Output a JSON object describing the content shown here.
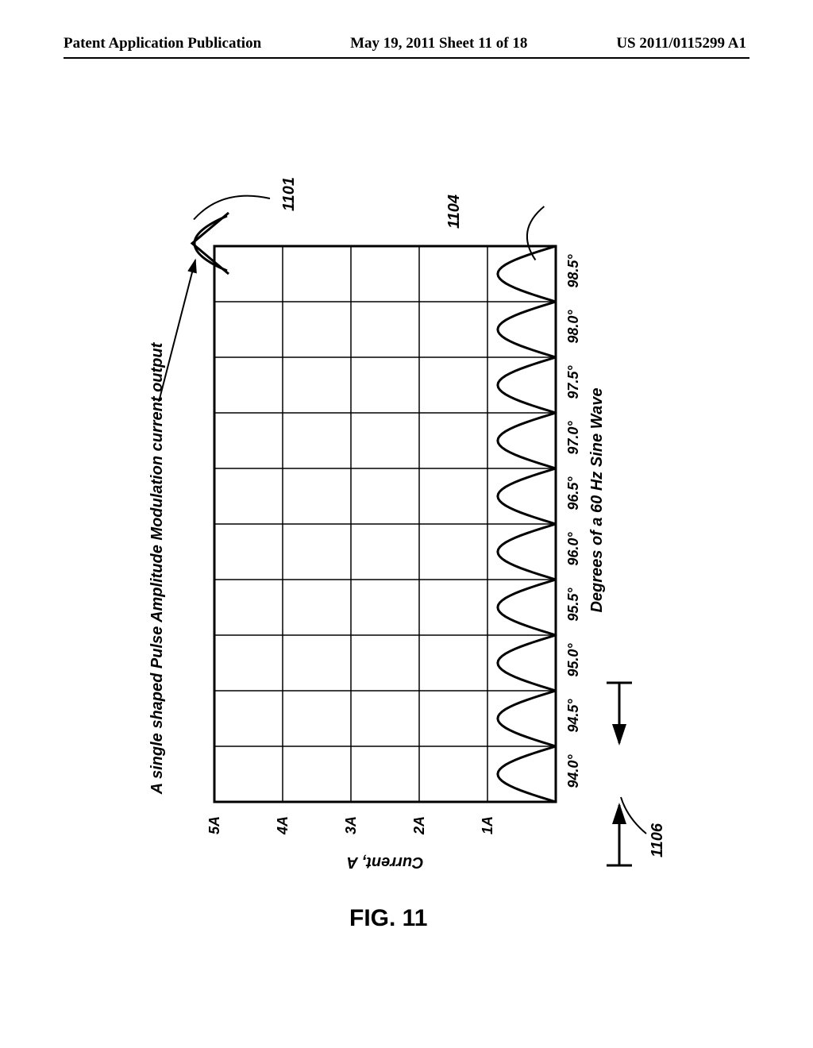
{
  "header": {
    "left": "Patent Application Publication",
    "center": "May 19, 2011  Sheet 11 of 18",
    "right": "US 2011/0115299 A1"
  },
  "figure": {
    "caption": "FIG. 11",
    "title": "A single shaped Pulse Amplitude Modulation current output",
    "y_axis_label": "Current, A",
    "x_axis_label": "Degrees of a 60 Hz  Sine Wave",
    "y_ticks": [
      "1A",
      "2A",
      "3A",
      "4A",
      "5A"
    ],
    "x_ticks": [
      "94.0°",
      "94.5°",
      "95.0°",
      "95.5°",
      "96.0°",
      "96.5°",
      "97.0°",
      "97.5°",
      "98.0°",
      "98.5°"
    ],
    "refs": {
      "curve": "1101",
      "rightmost_hump": "1104",
      "interval_marker": "1106"
    },
    "style": {
      "axis_stroke": "#000000",
      "axis_stroke_width": 3,
      "grid_stroke": "#000000",
      "grid_stroke_width": 1.5,
      "background": "#ffffff",
      "font_family_labels": "Arial, Helvetica, sans-serif",
      "tick_fontsize": 18,
      "axis_label_fontsize": 20,
      "title_fontsize": 20,
      "ref_fontsize": 20,
      "caption_fontsize": 30
    },
    "plot": {
      "n_cols": 10,
      "n_rows": 5,
      "hump_peak_fraction_of_one_row": 0.85
    }
  }
}
